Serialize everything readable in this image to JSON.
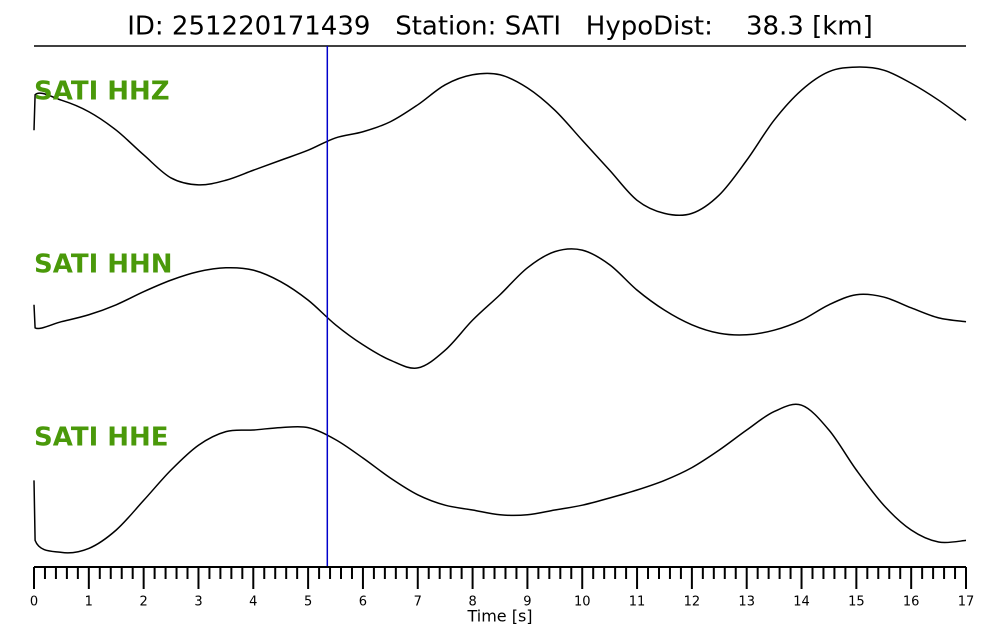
{
  "chart_data": {
    "type": "line",
    "title": "ID: 251220171439   Station: SATI   HypoDist:    38.3 [km]",
    "xlabel": "Time [s]",
    "x": [
      0,
      0.02,
      0.5,
      1,
      1.5,
      2,
      2.5,
      3,
      3.5,
      4,
      4.5,
      5,
      5.5,
      6,
      6.5,
      7,
      7.5,
      8,
      8.5,
      9,
      9.5,
      10,
      10.5,
      11,
      11.5,
      12,
      12.5,
      13,
      13.5,
      14,
      14.5,
      15,
      15.5,
      16,
      16.5,
      17
    ],
    "xlim": [
      0,
      17
    ],
    "xticks": [
      0,
      1,
      2,
      3,
      4,
      5,
      6,
      7,
      8,
      9,
      10,
      11,
      12,
      13,
      14,
      15,
      16,
      17
    ],
    "minor_xticks": [
      0.2,
      0.4,
      0.6,
      0.8,
      1.2,
      1.4,
      1.6,
      1.8,
      2.2,
      2.4,
      2.6,
      2.8,
      3.2,
      3.4,
      3.6,
      3.8,
      4.2,
      4.4,
      4.6,
      4.8,
      5.2,
      5.4,
      5.6,
      5.8,
      6.2,
      6.4,
      6.6,
      6.8,
      7.2,
      7.4,
      7.6,
      7.8,
      8.2,
      8.4,
      8.6,
      8.8,
      9.2,
      9.4,
      9.6,
      9.8,
      10.2,
      10.4,
      10.6,
      10.8,
      11.2,
      11.4,
      11.6,
      11.8,
      12.2,
      12.4,
      12.6,
      12.8,
      13.2,
      13.4,
      13.6,
      13.8,
      14.2,
      14.4,
      14.6,
      14.8,
      15.2,
      15.4,
      15.6,
      15.8,
      16.2,
      16.4,
      16.6,
      16.8
    ],
    "ylim": [
      -1,
      1
    ],
    "label_color": "#4a990a",
    "pick": {
      "x": 5.35,
      "color": "#0000cc"
    },
    "series": [
      {
        "name": "SATI HHZ",
        "color": "#000000",
        "values": [
          0.14,
          0.6,
          0.53,
          0.38,
          0.14,
          -0.18,
          -0.48,
          -0.57,
          -0.51,
          -0.38,
          -0.25,
          -0.12,
          0.04,
          0.12,
          0.25,
          0.47,
          0.73,
          0.86,
          0.86,
          0.69,
          0.4,
          0.01,
          -0.38,
          -0.77,
          -0.94,
          -0.94,
          -0.7,
          -0.25,
          0.27,
          0.66,
          0.9,
          0.96,
          0.92,
          0.75,
          0.53,
          0.27
        ]
      },
      {
        "name": "SATI HHN",
        "color": "#000000",
        "values": [
          0.12,
          -0.18,
          -0.1,
          -0.01,
          0.12,
          0.29,
          0.44,
          0.55,
          0.6,
          0.57,
          0.42,
          0.18,
          -0.14,
          -0.4,
          -0.6,
          -0.7,
          -0.47,
          -0.08,
          0.25,
          0.6,
          0.81,
          0.83,
          0.64,
          0.31,
          0.05,
          -0.14,
          -0.25,
          -0.27,
          -0.21,
          -0.08,
          0.12,
          0.25,
          0.22,
          0.08,
          -0.05,
          -0.1
        ]
      },
      {
        "name": "SATI HHE",
        "color": "#000000",
        "values": [
          -0.08,
          -0.83,
          -0.98,
          -0.93,
          -0.7,
          -0.33,
          0.05,
          0.36,
          0.53,
          0.55,
          0.58,
          0.58,
          0.43,
          0.2,
          -0.05,
          -0.26,
          -0.39,
          -0.45,
          -0.51,
          -0.51,
          -0.45,
          -0.39,
          -0.3,
          -0.2,
          -0.08,
          0.08,
          0.3,
          0.55,
          0.78,
          0.86,
          0.55,
          0.05,
          -0.39,
          -0.7,
          -0.85,
          -0.83
        ]
      }
    ]
  }
}
